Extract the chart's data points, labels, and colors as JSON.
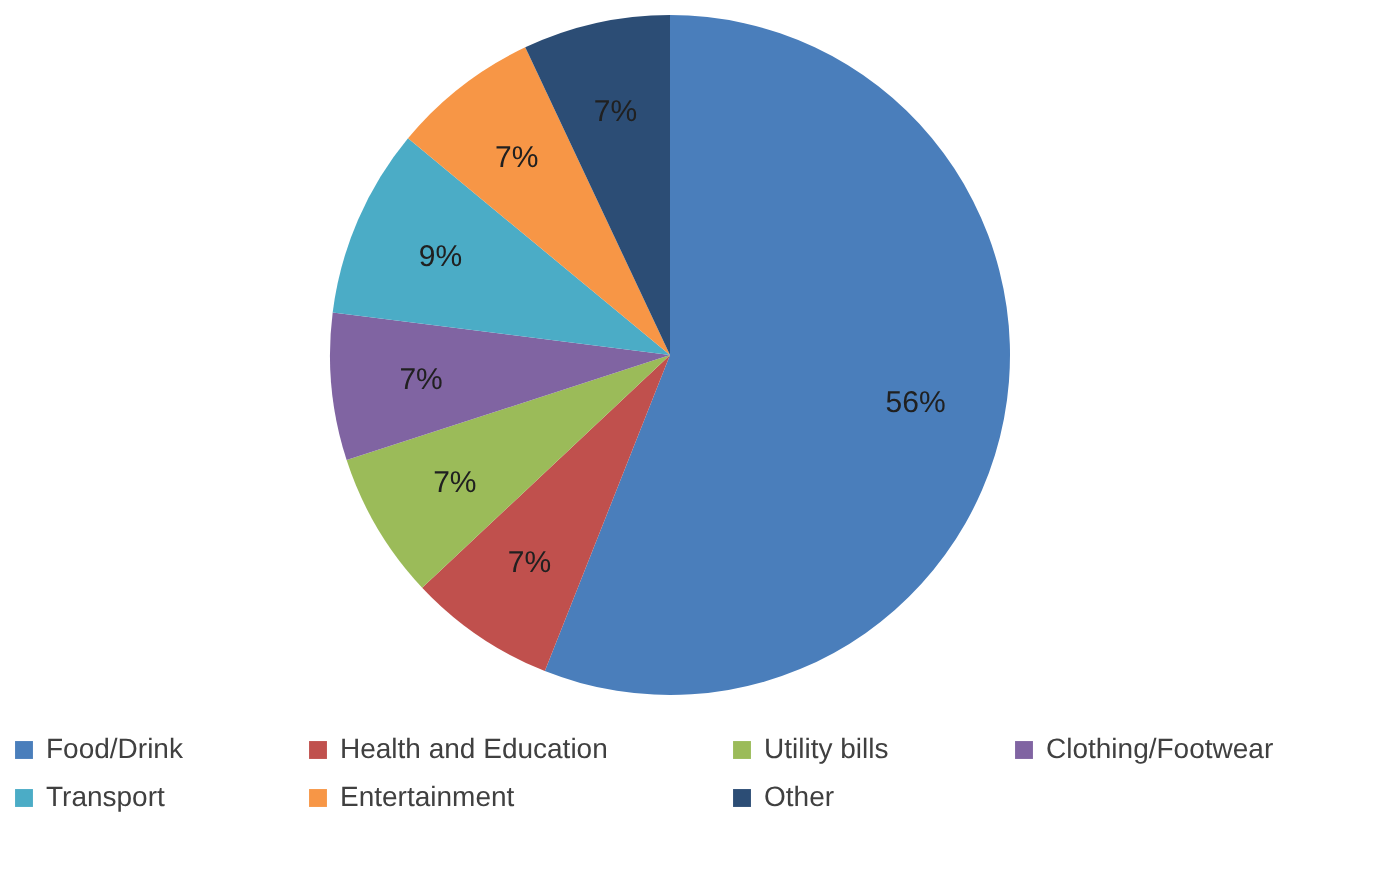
{
  "chart_data": {
    "type": "pie",
    "categories": [
      "Food/Drink",
      "Health and Education",
      "Utility bills",
      "Clothing/Footwear",
      "Transport",
      "Entertainment",
      "Other"
    ],
    "values": [
      56,
      7,
      7,
      7,
      9,
      7,
      7
    ],
    "colors": [
      "#4a7ebb",
      "#c0504d",
      "#9bbb59",
      "#8064a2",
      "#4bacc6",
      "#f79646",
      "#2c4d75"
    ],
    "value_labels": [
      "56%",
      "7%",
      "7%",
      "7%",
      "9%",
      "7%",
      "7%"
    ],
    "legend": "bottom"
  }
}
